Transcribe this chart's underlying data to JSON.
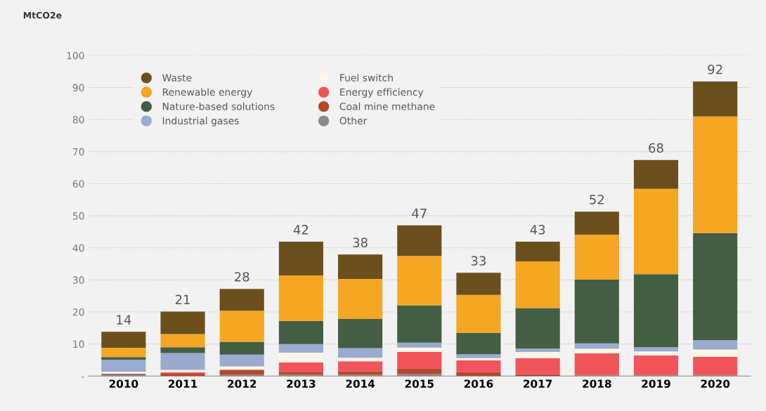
{
  "chart_data": {
    "type": "bar",
    "stacked": true,
    "ylabel": "MtCO2e",
    "categories": [
      "2010",
      "2011",
      "2012",
      "2013",
      "2014",
      "2015",
      "2016",
      "2017",
      "2018",
      "2019",
      "2020"
    ],
    "series": [
      {
        "name": "Other",
        "color": "#8a8a8a",
        "values": [
          0.5,
          null,
          0.4,
          0.4,
          0.4,
          0.6,
          null,
          null,
          0.2,
          0.2,
          0.2
        ]
      },
      {
        "name": "Coal mine methane",
        "color": "#b5482e",
        "values": [
          0.2,
          0.7,
          1.6,
          0.9,
          1.1,
          1.8,
          1.2,
          0.6,
          0.2,
          0.2,
          0.2
        ]
      },
      {
        "name": "Energy efficiency",
        "color": "#f2545b",
        "values": [
          0,
          0.5,
          0,
          2.9,
          3.1,
          5.1,
          3.7,
          5.0,
          6.7,
          6.0,
          5.6
        ]
      },
      {
        "name": "Fuel switch",
        "color": "#fdf5e6",
        "values": [
          0.6,
          0.7,
          1.0,
          3.1,
          1.1,
          1.4,
          0.7,
          1.9,
          1.4,
          1.3,
          2.3
        ]
      },
      {
        "name": "Industrial gases",
        "color": "#9aabcf",
        "values": [
          3.8,
          5.3,
          3.7,
          2.7,
          3.0,
          1.5,
          1.2,
          1.1,
          1.7,
          1.3,
          2.9
        ]
      },
      {
        "name": "Nature-based solutions",
        "color": "#445e44",
        "values": [
          0.8,
          1.8,
          4.0,
          7.2,
          9.1,
          11.7,
          6.7,
          12.6,
          19.9,
          22.8,
          33.4
        ]
      },
      {
        "name": "Renewable energy",
        "color": "#f5a623",
        "values": [
          2.9,
          4.1,
          9.7,
          14.2,
          12.5,
          15.4,
          11.8,
          14.6,
          14.0,
          26.6,
          36.4
        ]
      },
      {
        "name": "Waste",
        "color": "#6b4f1d",
        "values": [
          5.0,
          7.0,
          6.8,
          10.5,
          7.6,
          9.5,
          6.9,
          6.1,
          7.2,
          9.0,
          10.9
        ]
      }
    ],
    "totals": [
      "14",
      "21",
      "28",
      "42",
      "38",
      "47",
      "33",
      "43",
      "52",
      "68",
      "92"
    ],
    "ylim": [
      0,
      100
    ],
    "yticks": [
      {
        "value": 0,
        "label": "-"
      },
      10,
      20,
      30,
      40,
      50,
      60,
      70,
      80,
      90,
      100
    ],
    "grid": "y",
    "legend": "top left"
  }
}
